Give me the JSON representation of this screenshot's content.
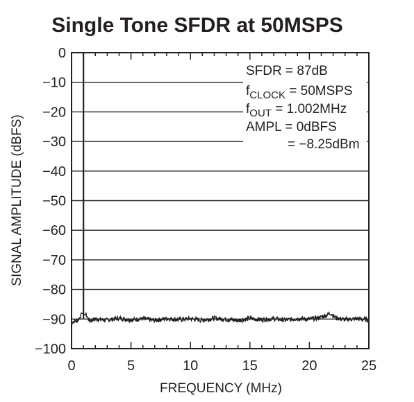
{
  "chart_data": {
    "type": "line",
    "title": "Single Tone SFDR at 50MSPS",
    "xlabel": "FREQUENCY (MHz)",
    "ylabel": "SIGNAL AMPLITUDE (dBFS)",
    "xlim": [
      0,
      25
    ],
    "ylim": [
      -100,
      0
    ],
    "x_ticks": [
      0,
      5,
      10,
      15,
      20,
      25
    ],
    "y_ticks": [
      0,
      -10,
      -20,
      -30,
      -40,
      -50,
      -60,
      -70,
      -80,
      -90,
      -100
    ],
    "x_tick_labels": [
      "0",
      "5",
      "10",
      "15",
      "20",
      "25"
    ],
    "y_tick_labels": [
      "0",
      "−10",
      "−20",
      "−30",
      "−40",
      "−50",
      "−60",
      "−70",
      "−80",
      "−90",
      "−100"
    ],
    "grid": true,
    "annotations": {
      "sfdr": "SFDR = 87dB",
      "fclock_main": "f",
      "fclock_sub": "CLOCK",
      "fclock_value": " = 50MSPS",
      "fout_main": "f",
      "fout_sub": "OUT",
      "fout_value": " = 1.002MHz",
      "ampl": "AMPL = 0dBFS",
      "ampl_dbm": "= −8.25dBm"
    },
    "series": [
      {
        "tone": {
          "x": 1.002,
          "y": 0
        },
        "noise_floor_dbfs": -90,
        "points": [
          [
            0.0,
            -91.0
          ],
          [
            0.5,
            -90.5
          ],
          [
            0.85,
            -88.5
          ],
          [
            0.95,
            -72.0
          ],
          [
            1.002,
            0
          ],
          [
            1.05,
            -73.0
          ],
          [
            1.15,
            -88.0
          ],
          [
            1.5,
            -90.6
          ],
          [
            2.0,
            -90.0
          ],
          [
            3.0,
            -90.4
          ],
          [
            4.0,
            -89.7
          ],
          [
            5.0,
            -90.3
          ],
          [
            6.0,
            -89.9
          ],
          [
            7.0,
            -90.5
          ],
          [
            8.0,
            -89.8
          ],
          [
            9.0,
            -90.2
          ],
          [
            10.0,
            -89.9
          ],
          [
            11.0,
            -90.4
          ],
          [
            12.0,
            -89.7
          ],
          [
            13.0,
            -90.1
          ],
          [
            14.0,
            -90.5
          ],
          [
            15.0,
            -89.8
          ],
          [
            16.0,
            -90.2
          ],
          [
            17.0,
            -89.9
          ],
          [
            18.0,
            -90.4
          ],
          [
            19.0,
            -89.8
          ],
          [
            20.0,
            -90.1
          ],
          [
            21.0,
            -89.4
          ],
          [
            21.8,
            -88.0
          ],
          [
            22.2,
            -89.6
          ],
          [
            23.0,
            -90.2
          ],
          [
            24.0,
            -89.9
          ],
          [
            25.0,
            -90.3
          ]
        ]
      }
    ]
  }
}
